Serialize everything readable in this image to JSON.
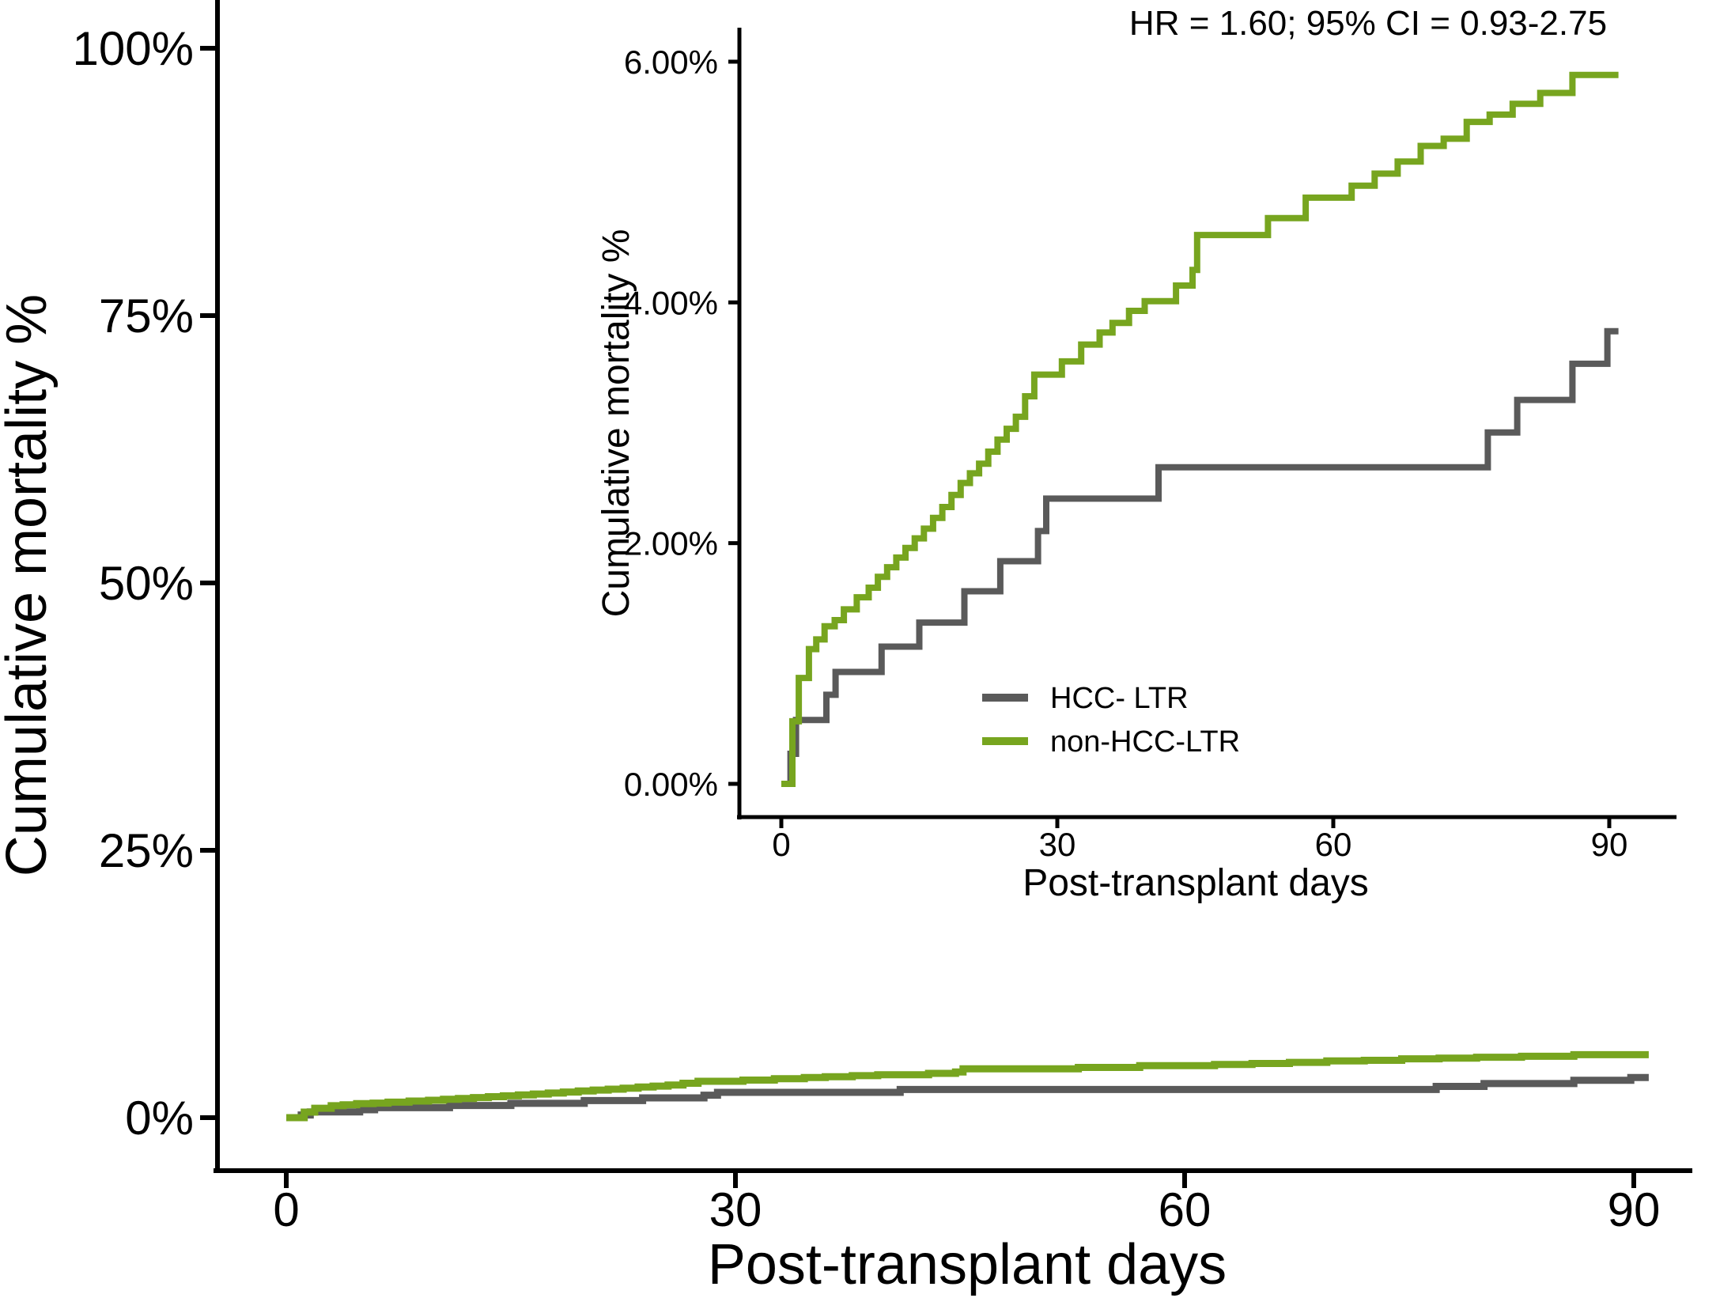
{
  "figure": {
    "background": "#ffffff",
    "axis_color": "#000000",
    "annotation": "HR = 1.60; 95% CI = 0.93-2.75"
  },
  "legend": {
    "position": "inside-inset-lower-right",
    "items": [
      {
        "label": "HCC- LTR",
        "color": "#5a5a5a"
      },
      {
        "label": "non-HCC-LTR",
        "color": "#77a51f"
      }
    ]
  },
  "chart_data": {
    "type": "line",
    "step": "post",
    "x_unit": "days",
    "y_unit": "percent",
    "series": [
      {
        "name": "HCC- LTR",
        "color": "#5a5a5a",
        "points": [
          [
            0,
            0
          ],
          [
            1,
            0.25
          ],
          [
            1.6,
            0.53
          ],
          [
            4.9,
            0.74
          ],
          [
            5.9,
            0.93
          ],
          [
            10.9,
            1.14
          ],
          [
            15,
            1.34
          ],
          [
            19.9,
            1.6
          ],
          [
            23.8,
            1.85
          ],
          [
            27.9,
            2.1
          ],
          [
            28.8,
            2.37
          ],
          [
            41,
            2.63
          ],
          [
            76.8,
            2.92
          ],
          [
            80,
            3.19
          ],
          [
            86,
            3.49
          ],
          [
            89.8,
            3.76
          ],
          [
            91,
            3.76
          ]
        ]
      },
      {
        "name": "non-HCC-LTR",
        "color": "#77a51f",
        "points": [
          [
            0,
            0
          ],
          [
            1.2,
            0.52
          ],
          [
            1.9,
            0.88
          ],
          [
            3,
            1.12
          ],
          [
            3.8,
            1.2
          ],
          [
            4.7,
            1.31
          ],
          [
            5.8,
            1.36
          ],
          [
            6.8,
            1.45
          ],
          [
            8.2,
            1.55
          ],
          [
            9.5,
            1.63
          ],
          [
            10.5,
            1.72
          ],
          [
            11.5,
            1.8
          ],
          [
            12.5,
            1.88
          ],
          [
            13.5,
            1.96
          ],
          [
            14.5,
            2.04
          ],
          [
            15.5,
            2.12
          ],
          [
            16.5,
            2.21
          ],
          [
            17.5,
            2.3
          ],
          [
            18.5,
            2.4
          ],
          [
            19.5,
            2.5
          ],
          [
            20.5,
            2.58
          ],
          [
            21.5,
            2.66
          ],
          [
            22.5,
            2.76
          ],
          [
            23.5,
            2.86
          ],
          [
            24.5,
            2.95
          ],
          [
            25.5,
            3.05
          ],
          [
            26.5,
            3.22
          ],
          [
            27.5,
            3.4
          ],
          [
            30.5,
            3.51
          ],
          [
            32.6,
            3.65
          ],
          [
            34.6,
            3.75
          ],
          [
            36,
            3.83
          ],
          [
            37.8,
            3.93
          ],
          [
            39.5,
            4.01
          ],
          [
            42.9,
            4.14
          ],
          [
            44.7,
            4.27
          ],
          [
            45.2,
            4.56
          ],
          [
            52.9,
            4.7
          ],
          [
            57,
            4.87
          ],
          [
            62,
            4.97
          ],
          [
            64.5,
            5.07
          ],
          [
            67,
            5.17
          ],
          [
            69.5,
            5.3
          ],
          [
            72,
            5.36
          ],
          [
            74.5,
            5.5
          ],
          [
            77,
            5.56
          ],
          [
            79.5,
            5.65
          ],
          [
            82.5,
            5.74
          ],
          [
            86,
            5.89
          ],
          [
            91,
            5.89
          ]
        ]
      }
    ],
    "views": [
      {
        "id": "main",
        "xlabel": "Post-transplant days",
        "ylabel": "Cumulative mortality %",
        "xlim": [
          0,
          93
        ],
        "ylim": [
          0,
          100
        ],
        "x_ticks": [
          0,
          30,
          60,
          90
        ],
        "x_tick_labels": [
          "0",
          "30",
          "60",
          "90"
        ],
        "y_ticks": [
          0,
          25,
          50,
          75,
          100
        ],
        "y_tick_labels": [
          "0%",
          "25%",
          "50%",
          "75%",
          "100%"
        ],
        "grid": false,
        "annotation": "HR = 1.60; 95% CI = 0.93-2.75"
      },
      {
        "id": "inset",
        "xlabel": "Post-transplant days",
        "ylabel": "Cumulative mortality %",
        "xlim": [
          0,
          93
        ],
        "ylim": [
          0,
          6.2
        ],
        "x_ticks": [
          0,
          30,
          60,
          90
        ],
        "x_tick_labels": [
          "0",
          "30",
          "60",
          "90"
        ],
        "y_ticks": [
          0,
          2,
          4,
          6
        ],
        "y_tick_labels": [
          "0.00%",
          "2.00%",
          "4.00%",
          "6.00%"
        ],
        "grid": false,
        "legend_position": "lower right"
      }
    ]
  }
}
